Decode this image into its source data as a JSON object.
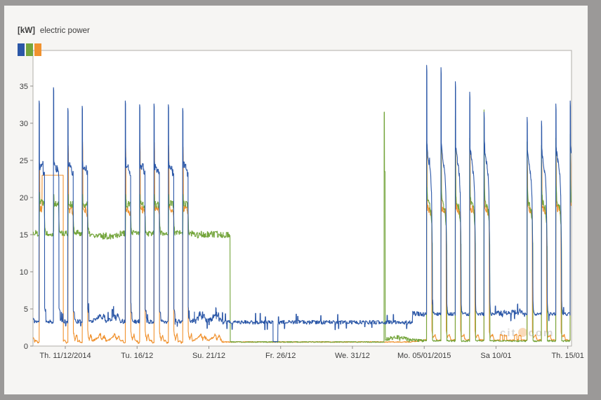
{
  "header": {
    "unit": "[kW]",
    "title": "electric power"
  },
  "watermark": {
    "left": "cit",
    "right": "com"
  },
  "chart_data": {
    "type": "line",
    "title": "electric power",
    "unit": "kW",
    "ylim": [
      0,
      39.8
    ],
    "y_ticks": [
      0,
      5,
      10,
      15,
      20,
      25,
      30,
      35
    ],
    "x_ticks": [
      {
        "t": 0,
        "label": "Th. 11/12/2014"
      },
      {
        "t": 5,
        "label": "Tu. 16/12"
      },
      {
        "t": 10,
        "label": "Su. 21/12"
      },
      {
        "t": 15,
        "label": "Fr. 26/12"
      },
      {
        "t": 20,
        "label": "We. 31/12"
      },
      {
        "t": 25,
        "label": "Mo. 05/01/2015"
      },
      {
        "t": 30,
        "label": "Sa 10/01"
      },
      {
        "t": 35,
        "label": "Th. 15/01"
      }
    ],
    "x_range": [
      -2.25,
      35.26
    ],
    "sample_step_days": 0.012,
    "grid": false,
    "legend_position": "top-left",
    "series": [
      {
        "key": "blue",
        "color": "#2b57a7"
      },
      {
        "key": "green",
        "color": "#74a53c"
      },
      {
        "key": "orange",
        "color": "#f0922f"
      }
    ],
    "seeds": {
      "blue": 11,
      "green": 22,
      "orange": 33
    },
    "param_defaults": {
      "work_dec": {
        "bn": 3.3,
        "gn": 15.2,
        "on": 0.7,
        "bd": 24,
        "gd": 19.2,
        "od": 18,
        "bp": 32.5,
        "op": 27,
        "gp": 0
      },
      "work_jan": {
        "bn": 4.3,
        "gn": 0.7,
        "on": 0.8,
        "bd": 22.5,
        "gd": 19,
        "od": 18,
        "bp": 35,
        "op": 27,
        "gp": 28
      },
      "weekend_dec": {
        "bn": 3.3,
        "gn": 14.8,
        "on": 0.7
      },
      "weekend_jan": {
        "bn": 4.4,
        "gn": 0.7,
        "on": 0.8
      },
      "holiday": {
        "bn": 3.2,
        "gn": 0.55,
        "on": 0.55
      }
    },
    "profiles": {
      "work_dec": {
        "blue": [
          [
            0,
            "bn",
            0,
            0.25
          ],
          [
            4.1,
            "bn",
            0,
            0.25
          ],
          [
            4.25,
            "bp",
            0,
            0
          ],
          [
            4.7,
            "bp",
            -0.4,
            0
          ],
          [
            4.85,
            "bd",
            1,
            0.5
          ],
          [
            5.5,
            "bd",
            0.3,
            0.55
          ],
          [
            10.8,
            "bd",
            0,
            0.55
          ],
          [
            11.3,
            "bd",
            -0.6,
            0.45
          ],
          [
            13.2,
            "bd",
            -0.8,
            0.45
          ],
          [
            13.45,
            null,
            5,
            0.3
          ],
          [
            15.2,
            null,
            4.6,
            0.3
          ],
          [
            15.7,
            "bn",
            0.2,
            0.25
          ],
          [
            19,
            "bn",
            0,
            0.25
          ]
        ],
        "green": [
          [
            0,
            "gn",
            0,
            0.4
          ],
          [
            4.5,
            "gn",
            0,
            0.4
          ],
          [
            4.9,
            "gd",
            1.2,
            0
          ],
          [
            5.4,
            "gd",
            0,
            0.5
          ],
          [
            12.8,
            "gd",
            -0.2,
            0.5
          ],
          [
            14,
            "gn",
            0.6,
            0.4
          ],
          [
            15.5,
            "gn",
            0,
            0.4
          ]
        ],
        "orange": [
          [
            0,
            "on",
            0,
            0.12
          ],
          [
            2,
            null,
            0.45,
            0.1
          ],
          [
            4.3,
            null,
            0.5,
            0.1
          ],
          [
            4.5,
            "od",
            0,
            0.4
          ],
          [
            4.8,
            "op",
            0,
            0
          ],
          [
            5.2,
            "op",
            -1.2,
            0
          ],
          [
            5.5,
            "od",
            0.6,
            0.55
          ],
          [
            12.2,
            "od",
            0,
            0.55
          ],
          [
            13.2,
            "od",
            -0.4,
            0.4
          ],
          [
            13.5,
            null,
            2,
            0.2
          ],
          [
            14.5,
            null,
            1.4,
            0.18
          ],
          [
            16,
            null,
            0.8,
            0.12
          ],
          [
            18.8,
            null,
            1.6,
            0.2
          ],
          [
            20.5,
            "on",
            0,
            0.12
          ]
        ]
      },
      "work_jan": {
        "blue": [
          [
            0,
            "bn",
            0,
            0.22
          ],
          [
            3.9,
            "bn",
            0,
            0.22
          ],
          [
            4.05,
            "bp",
            0,
            0
          ],
          [
            4.45,
            "bp",
            -0.8,
            0
          ],
          [
            4.6,
            "bd",
            4.5,
            0.4
          ],
          [
            5.8,
            "bd",
            3.5,
            0.4
          ],
          [
            7.4,
            "bd",
            2.5,
            0.4
          ],
          [
            9.2,
            "bd",
            1.5,
            0.35
          ],
          [
            10.8,
            "bd",
            0.5,
            0.35
          ],
          [
            12.2,
            "bd",
            -2,
            0.3
          ],
          [
            13,
            null,
            15,
            0.25
          ],
          [
            13.8,
            null,
            6,
            0.25
          ],
          [
            14.6,
            "bn",
            0.4,
            0.22
          ],
          [
            16.5,
            "bn",
            0,
            0.22
          ]
        ],
        "green": [
          [
            0,
            "gn",
            0,
            0.1
          ],
          [
            3.85,
            "gn",
            0,
            0.1
          ],
          [
            4,
            "gp",
            0,
            0
          ],
          [
            4.4,
            "gp",
            -6,
            0
          ],
          [
            4.75,
            null,
            21,
            0.5
          ],
          [
            5.6,
            null,
            19.5,
            0.5
          ],
          [
            10.5,
            null,
            18.5,
            0.5
          ],
          [
            12.6,
            null,
            16.5,
            0.45
          ],
          [
            13.5,
            null,
            13.5,
            0.4
          ],
          [
            13.9,
            "gn",
            0,
            0.1
          ]
        ],
        "orange": [
          [
            0,
            "on",
            0,
            0.1
          ],
          [
            3.95,
            "on",
            0,
            0.1
          ],
          [
            4.1,
            "od",
            0,
            0.4
          ],
          [
            4.4,
            "op",
            0,
            0
          ],
          [
            4.8,
            "op",
            -1.5,
            0
          ],
          [
            5.05,
            "od",
            0.8,
            0.55
          ],
          [
            11.4,
            "od",
            0,
            0.55
          ],
          [
            12.6,
            "od",
            -0.4,
            0.4
          ],
          [
            12.9,
            null,
            2,
            0.18
          ],
          [
            14.2,
            null,
            1.2,
            0.12
          ],
          [
            18.5,
            null,
            1.5,
            0.15
          ],
          [
            20.5,
            "on",
            0,
            0.1
          ]
        ]
      },
      "weekend_dec": {
        "blue": [
          [
            0,
            "bn",
            0.2,
            0.3
          ],
          [
            6,
            "bn",
            0.4,
            0.35
          ],
          [
            9,
            "bn",
            1.1,
            0.3
          ],
          [
            12.5,
            "bn",
            0.4,
            0.35
          ],
          [
            16,
            "bn",
            0.9,
            0.3
          ],
          [
            20,
            "bn",
            0.1,
            0.3
          ]
        ],
        "green": [
          [
            0,
            "gn",
            0,
            0.45
          ]
        ],
        "orange": [
          [
            0,
            "on",
            0.1,
            0.12
          ],
          [
            7.5,
            "on",
            0.5,
            0.2
          ],
          [
            10,
            "on",
            0.9,
            0.25
          ],
          [
            13.5,
            "on",
            0.2,
            0.15
          ],
          [
            17,
            "on",
            0.6,
            0.2
          ],
          [
            21,
            "on",
            0,
            0.12
          ]
        ]
      },
      "weekend_jan": {
        "blue": [
          [
            0,
            "bn",
            0,
            0.3
          ],
          [
            5,
            "bn",
            0.3,
            0.35
          ],
          [
            11,
            "bn",
            -0.2,
            0.3
          ],
          [
            15,
            "bn",
            0.3,
            0.35
          ],
          [
            20,
            "bn",
            0,
            0.3
          ]
        ],
        "green": [
          [
            0,
            "gn",
            0,
            0.08
          ]
        ],
        "orange": [
          [
            0,
            "on",
            0,
            0.08
          ],
          [
            6.8,
            "on",
            0,
            0.08
          ],
          [
            7,
            "on",
            0.7,
            0.08
          ],
          [
            10.8,
            "on",
            0.7,
            0.08
          ],
          [
            11,
            "on",
            0,
            0.08
          ],
          [
            13.8,
            "on",
            0,
            0.08
          ],
          [
            14,
            "on",
            0.6,
            0.08
          ],
          [
            17.8,
            "on",
            0.6,
            0.08
          ],
          [
            18,
            "on",
            0,
            0.08
          ]
        ]
      },
      "holiday": {
        "blue": [
          [
            0,
            "bn",
            0,
            0.25
          ]
        ],
        "green": [
          [
            0,
            "gn",
            0,
            0.07
          ]
        ],
        "orange": [
          [
            0,
            "on",
            0,
            0.07
          ]
        ]
      }
    },
    "days": [
      {
        "d": -3,
        "profile": "weekend_dec",
        "params": {
          "gn": 15.4
        }
      },
      {
        "d": -2,
        "profile": "work_dec",
        "params": {
          "bp": 33,
          "op": 24.5,
          "gd": 19.5
        }
      },
      {
        "d": -1,
        "profile": "work_dec",
        "params": {
          "bp": 34.8,
          "op": 24.5
        }
      },
      {
        "d": 0,
        "profile": "work_dec",
        "params": {
          "bp": 32,
          "op": 27
        }
      },
      {
        "d": 1,
        "profile": "work_dec",
        "params": {
          "bp": 32.3,
          "op": 27.5
        }
      },
      {
        "d": 2,
        "profile": "weekend_dec"
      },
      {
        "d": 3,
        "profile": "weekend_dec"
      },
      {
        "d": 4,
        "profile": "work_dec",
        "params": {
          "bp": 33,
          "op": 27
        }
      },
      {
        "d": 5,
        "profile": "work_dec",
        "params": {
          "bp": 32.5,
          "op": 27.3
        }
      },
      {
        "d": 6,
        "profile": "work_dec",
        "params": {
          "bp": 32.6,
          "op": 27.4
        }
      },
      {
        "d": 7,
        "profile": "work_dec",
        "params": {
          "bp": 32.5,
          "op": 27
        }
      },
      {
        "d": 8,
        "profile": "work_dec",
        "params": {
          "bp": 32,
          "op": 26.8
        }
      },
      {
        "d": 9,
        "profile": "weekend_dec",
        "params": {
          "gn": 15.0
        }
      },
      {
        "d": 10,
        "profile": "weekend_dec",
        "params": {
          "gn": 15.0
        }
      },
      {
        "d": 11,
        "profile": "holiday",
        "overrides": {
          "green": [
            [
              0,
              null,
              15,
              0.4
            ],
            [
              11.3,
              null,
              15,
              0.4
            ],
            [
              11.8,
              null,
              0.55,
              0.06
            ]
          ]
        }
      },
      {
        "d": 12,
        "profile": "holiday"
      },
      {
        "d": 13,
        "profile": "holiday"
      },
      {
        "d": 14,
        "profile": "holiday",
        "overrides": {
          "blue": [
            [
              0,
              "bn",
              0,
              0.25
            ],
            [
              11.2,
              "bn",
              0,
              0.25
            ],
            [
              11.35,
              null,
              0.6,
              0.04
            ],
            [
              19.2,
              null,
              0.6,
              0.04
            ],
            [
              19.45,
              "bn",
              0,
              0.25
            ]
          ]
        }
      },
      {
        "d": 15,
        "profile": "holiday"
      },
      {
        "d": 16,
        "profile": "holiday"
      },
      {
        "d": 17,
        "profile": "holiday"
      },
      {
        "d": 18,
        "profile": "holiday"
      },
      {
        "d": 19,
        "profile": "holiday"
      },
      {
        "d": 20,
        "profile": "holiday"
      },
      {
        "d": 21,
        "profile": "holiday"
      },
      {
        "d": 22,
        "profile": "holiday",
        "overrides": {
          "green": [
            [
              0,
              null,
              0.55,
              0.06
            ],
            [
              4.8,
              null,
              0.55,
              0
            ],
            [
              5.05,
              null,
              31.5,
              0
            ],
            [
              5.45,
              null,
              31.5,
              0
            ],
            [
              5.65,
              null,
              23.5,
              0
            ],
            [
              6.5,
              null,
              23.5,
              0
            ],
            [
              6.75,
              null,
              5,
              0
            ],
            [
              7.05,
              null,
              0.9,
              0.25
            ]
          ]
        }
      },
      {
        "d": 23,
        "profile": "holiday",
        "overrides": {
          "green": [
            [
              0,
              null,
              1.15,
              0.35
            ]
          ]
        }
      },
      {
        "d": 24,
        "profile": "holiday",
        "overrides": {
          "green": [
            [
              0,
              null,
              0.85,
              0.18
            ]
          ],
          "blue": [
            [
              0,
              null,
              3.2,
              0.25
            ],
            [
              4.6,
              null,
              3.2,
              0.25
            ],
            [
              4.9,
              null,
              4.35,
              0.3
            ]
          ]
        }
      },
      {
        "d": 25,
        "profile": "work_jan",
        "params": {
          "bp": 37.8,
          "gp": 27.5,
          "op": 27.3
        }
      },
      {
        "d": 26,
        "profile": "work_jan",
        "params": {
          "bp": 37.5,
          "gp": 31,
          "op": 27.5
        }
      },
      {
        "d": 27,
        "profile": "work_jan",
        "params": {
          "bp": 35.6,
          "gp": 31,
          "op": 27
        }
      },
      {
        "d": 28,
        "profile": "work_jan",
        "params": {
          "bp": 34.2,
          "gp": 28,
          "op": 27
        }
      },
      {
        "d": 29,
        "profile": "work_jan",
        "params": {
          "bp": 31.5,
          "gp": 31.8,
          "op": 24
        }
      },
      {
        "d": 30,
        "profile": "weekend_jan"
      },
      {
        "d": 31,
        "profile": "weekend_jan"
      },
      {
        "d": 32,
        "profile": "work_jan",
        "params": {
          "bp": 30.8,
          "gp": 27.5,
          "op": 25,
          "bd": 22
        }
      },
      {
        "d": 33,
        "profile": "work_jan",
        "params": {
          "bp": 30.3,
          "gp": 27,
          "op": 25,
          "bd": 22
        }
      },
      {
        "d": 34,
        "profile": "work_jan",
        "params": {
          "bp": 32.6,
          "gp": 28,
          "op": 26
        }
      },
      {
        "d": 35,
        "profile": "work_jan",
        "params": {
          "bp": 33,
          "gp": 28.5,
          "op": 26
        }
      }
    ],
    "specials": {
      "orange_hold": {
        "from": -1.62,
        "to": -0.14,
        "value": 23
      }
    }
  }
}
